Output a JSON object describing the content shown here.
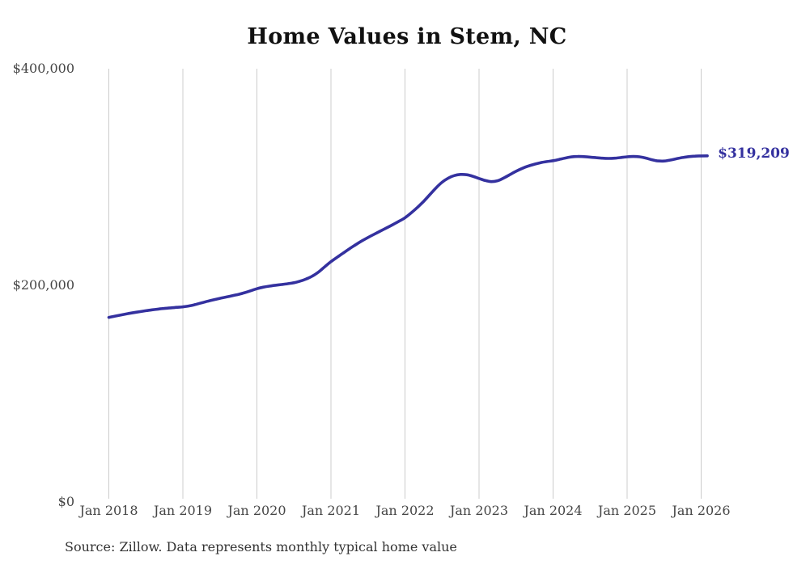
{
  "title": "Home Values in Stem, NC",
  "source_note": "Source: Zillow. Data represents monthly typical home value",
  "end_label": "$319,209",
  "colors": {
    "line": "#34319f",
    "end_label": "#34319f",
    "grid": "#cccccc",
    "title_text": "#111111",
    "axis_text": "#454545",
    "source_text": "#333333",
    "background": "#ffffff"
  },
  "chart_data": {
    "type": "line",
    "title": "Home Values in Stem, NC",
    "xlabel": "",
    "ylabel": "",
    "ylim": [
      0,
      400000
    ],
    "y_ticks": [
      0,
      200000,
      400000
    ],
    "y_tick_labels": [
      "$0",
      "$200,000",
      "$400,000"
    ],
    "x_tick_labels": [
      "Jan 2018",
      "Jan 2019",
      "Jan 2020",
      "Jan 2021",
      "Jan 2022",
      "Jan 2023",
      "Jan 2024",
      "Jan 2025",
      "Jan 2026"
    ],
    "x_start": "2018-01",
    "x_end": "2026-02",
    "points_per_year": 12,
    "grid": "vertical-only",
    "legend": "none",
    "end_value": 319209,
    "end_value_label": "$319,209",
    "series": [
      {
        "name": "Monthly typical home value",
        "values": [
          170000,
          171200,
          172300,
          173400,
          174400,
          175300,
          176200,
          177000,
          177700,
          178300,
          178800,
          179300,
          179800,
          180600,
          181900,
          183400,
          184900,
          186300,
          187600,
          188800,
          190000,
          191300,
          192800,
          194600,
          196500,
          197900,
          198900,
          199700,
          200400,
          201100,
          202000,
          203500,
          205500,
          208200,
          212000,
          216800,
          221500,
          225500,
          229500,
          233400,
          237100,
          240600,
          243800,
          246800,
          249700,
          252600,
          255600,
          258700,
          262000,
          266500,
          271500,
          277000,
          283200,
          289400,
          294800,
          298600,
          301000,
          302000,
          301700,
          300300,
          298300,
          296400,
          295400,
          296200,
          298700,
          301800,
          304900,
          307600,
          309800,
          311500,
          312900,
          313900,
          314700,
          315900,
          317200,
          318200,
          318600,
          318400,
          318000,
          317500,
          317000,
          316800,
          317000,
          317600,
          318300,
          318600,
          318300,
          317200,
          315600,
          314500,
          314400,
          315300,
          316500,
          317600,
          318400,
          318900,
          319100,
          319209
        ]
      }
    ]
  }
}
